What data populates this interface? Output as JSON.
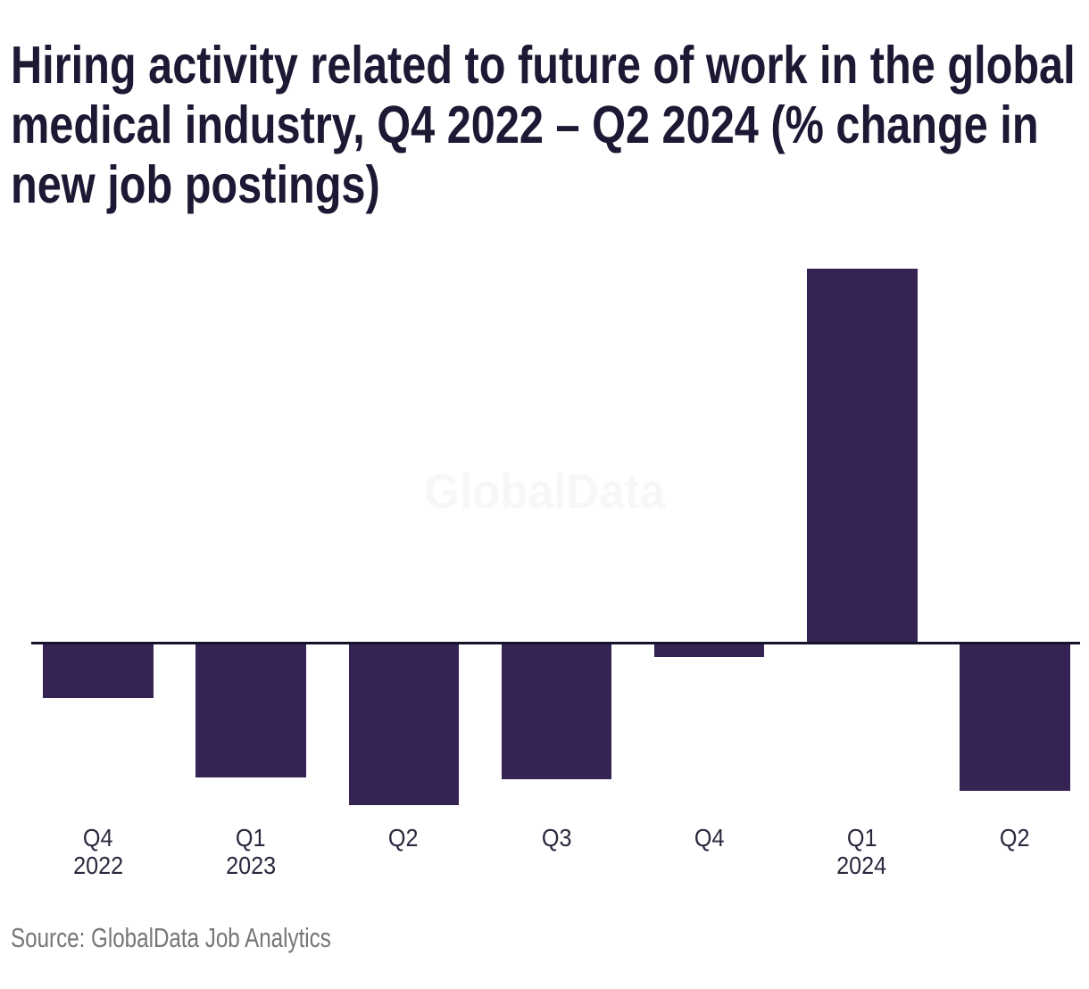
{
  "title": {
    "lines": [
      "Hiring activity related to future of work in the global",
      "medical industry, Q4 2022 – Q2 2024 (% change in",
      "new job postings)"
    ]
  },
  "watermark": "GlobalData",
  "source": "Source: GlobalData Job Analytics",
  "colors": {
    "background": "#ffffff",
    "bar": "#352453",
    "axis": "#14132a",
    "title": "#1b1933",
    "label": "#2a293f",
    "source": "#767676",
    "watermark": "#f7f7f7"
  },
  "chart_data": {
    "type": "bar",
    "title": "Hiring activity related to future of work in the global medical industry, Q4 2022 – Q2 2024 (% change in new job postings)",
    "categories": [
      "Q4 2022",
      "Q1 2023",
      "Q2 2023",
      "Q3 2023",
      "Q4 2023",
      "Q1 2024",
      "Q2 2024"
    ],
    "tick_labels": [
      {
        "quarter": "Q4",
        "year": "2022"
      },
      {
        "quarter": "Q1",
        "year": "2023"
      },
      {
        "quarter": "Q2",
        "year": ""
      },
      {
        "quarter": "Q3",
        "year": ""
      },
      {
        "quarter": "Q4",
        "year": ""
      },
      {
        "quarter": "Q1",
        "year": "2024"
      },
      {
        "quarter": "Q2",
        "year": ""
      }
    ],
    "values": [
      -9,
      -22.1,
      -26.7,
      -22.5,
      -2.2,
      62,
      -24.4
    ],
    "unit": "%",
    "xlabel": "",
    "ylabel": "% change in new job postings",
    "ylim": [
      -30,
      65
    ],
    "grid": false,
    "legend": false,
    "y_axis_shown": false,
    "bar_color": "#352453",
    "watermark": "GlobalData",
    "source": "GlobalData Job Analytics"
  }
}
